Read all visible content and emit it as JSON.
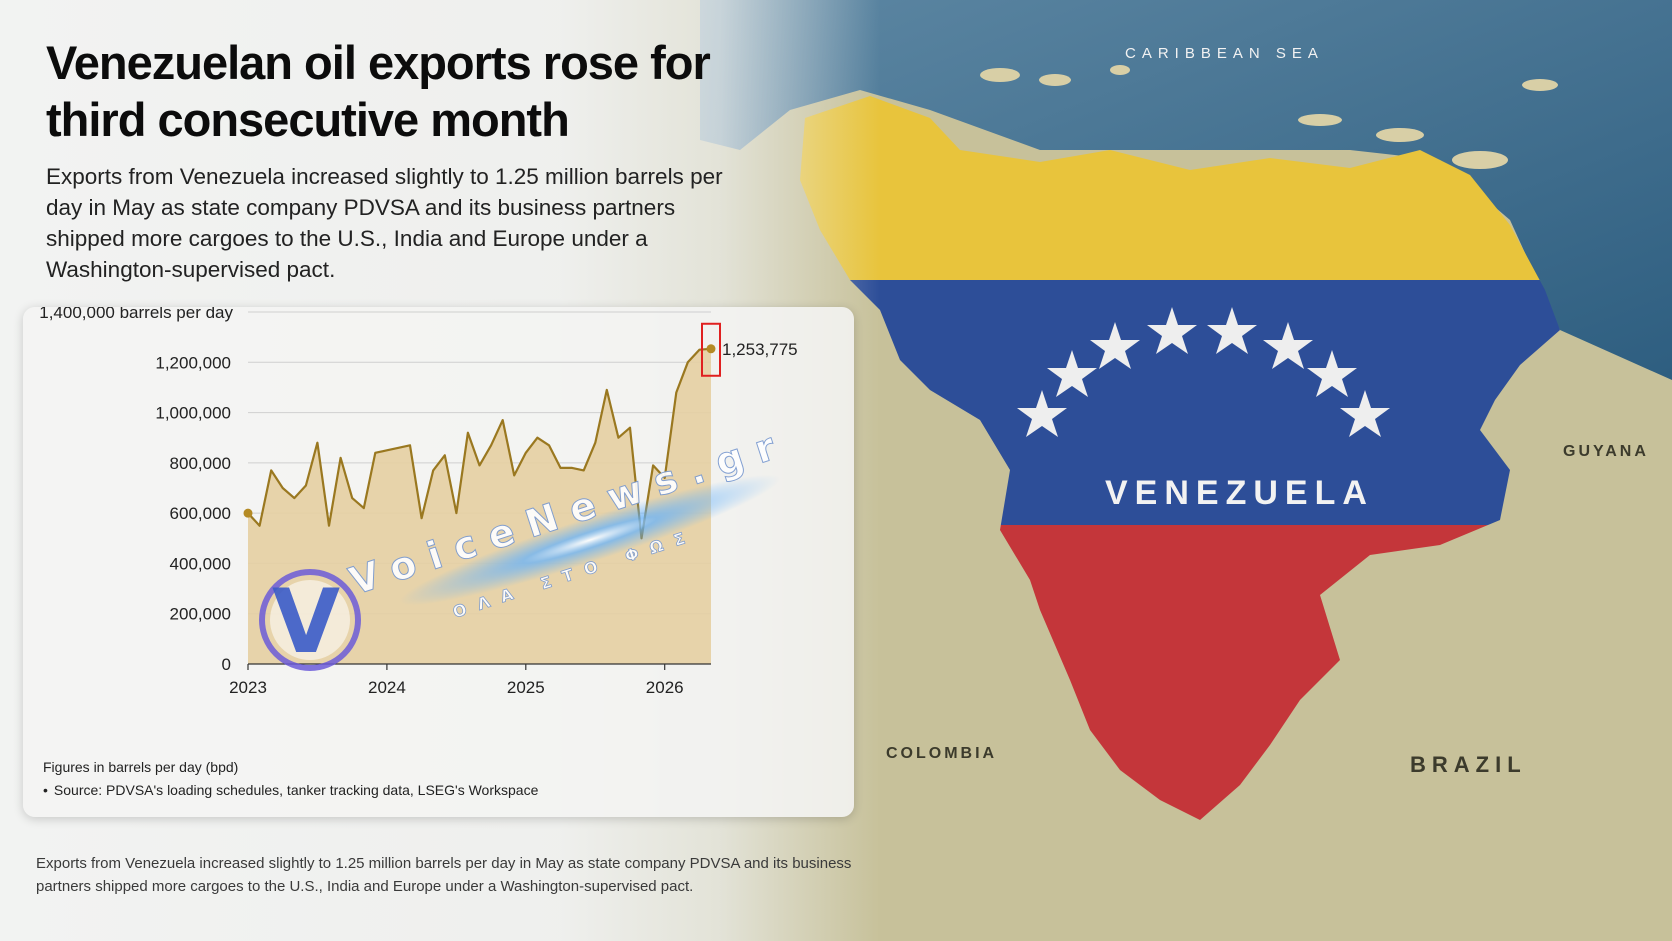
{
  "header": {
    "title": "Venezuelan oil exports rose for third consecutive month",
    "intro": "Exports from Venezuela increased slightly to 1.25 million barrels per day in May as state company PDVSA and its business partners shipped more cargoes to the U.S., India and Europe under a Washington-supervised pact."
  },
  "map": {
    "sea_label": "CARIBBEAN SEA",
    "country_label": "VENEZUELA",
    "neighbors": [
      "GUYANA",
      "COLOMBIA",
      "BRAZIL"
    ]
  },
  "watermark": {
    "brand": "VoiceNews.gr",
    "tagline": "ΟΛΑ ΣΤΟ ΦΩΣ",
    "logo_letter": "V"
  },
  "chart_data": {
    "type": "area",
    "ylabel": "barrels per day",
    "yticks": [
      "1,400,000 barrels per day",
      "1,200,000",
      "1,000,000",
      "800,000",
      "600,000",
      "400,000",
      "200,000",
      "0"
    ],
    "ytick_values": [
      1400000,
      1200000,
      1000000,
      800000,
      600000,
      400000,
      200000,
      0
    ],
    "xticks": [
      "2023",
      "2024",
      "2025",
      "2026"
    ],
    "ylim": [
      0,
      1400000
    ],
    "xlim": [
      "2023-01",
      "2026-05"
    ],
    "x": [
      "2023-01",
      "2023-02",
      "2023-03",
      "2023-04",
      "2023-05",
      "2023-06",
      "2023-07",
      "2023-08",
      "2023-09",
      "2023-10",
      "2023-11",
      "2023-12",
      "2024-01",
      "2024-02",
      "2024-03",
      "2024-04",
      "2024-05",
      "2024-06",
      "2024-07",
      "2024-08",
      "2024-09",
      "2024-10",
      "2024-11",
      "2024-12",
      "2025-01",
      "2025-02",
      "2025-03",
      "2025-04",
      "2025-05",
      "2025-06",
      "2025-07",
      "2025-08",
      "2025-09",
      "2025-10",
      "2025-11",
      "2025-12",
      "2026-01",
      "2026-02",
      "2026-03",
      "2026-04",
      "2026-05"
    ],
    "values": [
      600000,
      550000,
      770000,
      700000,
      660000,
      710000,
      880000,
      550000,
      820000,
      660000,
      620000,
      840000,
      850000,
      860000,
      870000,
      580000,
      770000,
      830000,
      600000,
      920000,
      790000,
      870000,
      970000,
      750000,
      840000,
      900000,
      870000,
      780000,
      780000,
      770000,
      880000,
      1090000,
      900000,
      940000,
      500000,
      790000,
      740000,
      1080000,
      1200000,
      1250000,
      1253775
    ],
    "end_label": "1,253,775",
    "colors": {
      "line": "#9a7820",
      "area": "#e6cfa2",
      "marker": "#b48a24",
      "highlight": "#e02020",
      "grid": "#cfcfcf"
    },
    "note": "Figures in barrels per day (bpd)",
    "source": "Source: PDVSA's loading schedules, tanker tracking data, LSEG's Workspace",
    "source_bullet": "•"
  },
  "footer": {
    "text": "Exports from Venezuela increased slightly to 1.25 million barrels per day in May as state company PDVSA and its business partners shipped more cargoes to the U.S., India and Europe under a Washington-supervised pact."
  }
}
